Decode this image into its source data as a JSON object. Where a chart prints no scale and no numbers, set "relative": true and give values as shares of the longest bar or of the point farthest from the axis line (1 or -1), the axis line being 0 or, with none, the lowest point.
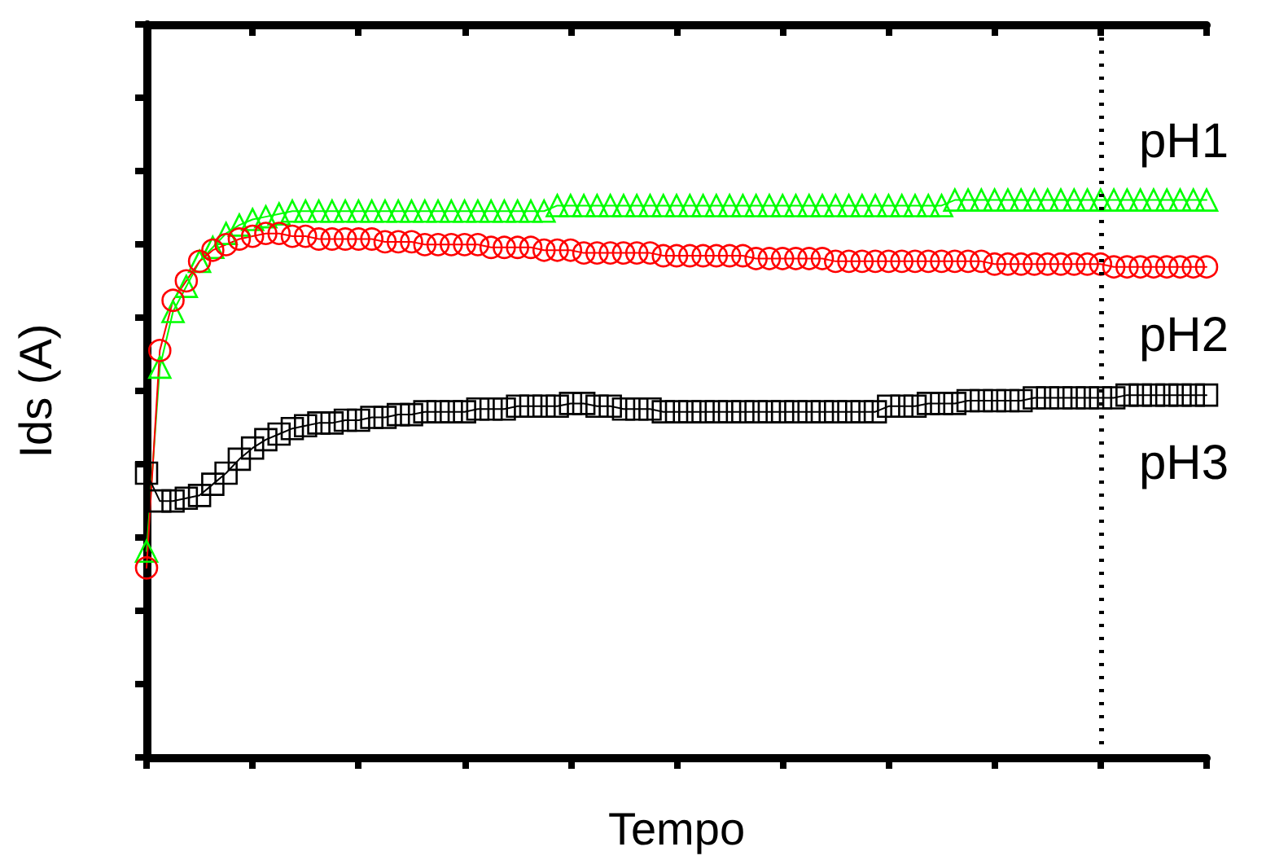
{
  "chart_data": {
    "type": "line",
    "relative": true,
    "xlabel": "Tempo",
    "ylabel": "Ids (A)",
    "categories": [
      null,
      null,
      null,
      null,
      null,
      null,
      null,
      null,
      null,
      null,
      null,
      null,
      null,
      null,
      null,
      null,
      null,
      null,
      null,
      null,
      null,
      null,
      null,
      null,
      null,
      null,
      null,
      null,
      null,
      null,
      null,
      null,
      null,
      null,
      null,
      null,
      null,
      null,
      null,
      null,
      null,
      null,
      null,
      null,
      null,
      null,
      null,
      null,
      null,
      null,
      null,
      null,
      null,
      null,
      null,
      null,
      null,
      null,
      null,
      null,
      null,
      null,
      null,
      null,
      null,
      null,
      null,
      null,
      null,
      null,
      null,
      null,
      null,
      null,
      null,
      null,
      null,
      null,
      null,
      null,
      null
    ],
    "series": [
      {
        "name": "pH1",
        "color": "#00ff00",
        "marker": "triangle",
        "values": [
          0.37,
          0.7,
          0.8,
          0.845,
          0.89,
          0.915,
          0.94,
          0.955,
          0.965,
          0.97,
          0.975,
          0.98,
          0.98,
          0.98,
          0.98,
          0.98,
          0.98,
          0.98,
          0.98,
          0.98,
          0.98,
          0.98,
          0.98,
          0.98,
          0.98,
          0.98,
          0.98,
          0.98,
          0.98,
          0.98,
          0.98,
          0.99,
          0.99,
          0.99,
          0.99,
          0.99,
          0.99,
          0.99,
          0.99,
          0.99,
          0.99,
          0.99,
          0.99,
          0.99,
          0.99,
          0.99,
          0.99,
          0.99,
          0.99,
          0.99,
          0.99,
          0.99,
          0.99,
          0.99,
          0.99,
          0.99,
          0.99,
          0.99,
          0.99,
          0.99,
          0.99,
          1.0,
          1.0,
          1.0,
          1.0,
          1.0,
          1.0,
          1.0,
          1.0,
          1.0,
          1.0,
          1.0,
          1.0,
          1.0,
          1.0,
          1.0,
          1.0,
          1.0,
          1.0,
          1.0,
          1.0
        ]
      },
      {
        "name": "pH2",
        "color": "#ff0000",
        "marker": "circle",
        "values": [
          0.34,
          0.73,
          0.82,
          0.855,
          0.89,
          0.91,
          0.92,
          0.93,
          0.935,
          0.94,
          0.94,
          0.935,
          0.935,
          0.93,
          0.93,
          0.93,
          0.93,
          0.93,
          0.925,
          0.925,
          0.925,
          0.92,
          0.92,
          0.92,
          0.92,
          0.92,
          0.915,
          0.915,
          0.915,
          0.915,
          0.91,
          0.91,
          0.91,
          0.905,
          0.905,
          0.905,
          0.905,
          0.905,
          0.905,
          0.9,
          0.9,
          0.9,
          0.9,
          0.9,
          0.9,
          0.9,
          0.895,
          0.895,
          0.895,
          0.895,
          0.895,
          0.895,
          0.89,
          0.89,
          0.89,
          0.89,
          0.89,
          0.89,
          0.89,
          0.89,
          0.89,
          0.89,
          0.89,
          0.89,
          0.885,
          0.885,
          0.885,
          0.885,
          0.885,
          0.885,
          0.885,
          0.885,
          0.885,
          0.88,
          0.88,
          0.88,
          0.88,
          0.88,
          0.88,
          0.88,
          0.88
        ]
      },
      {
        "name": "pH3",
        "color": "#000000",
        "marker": "square",
        "values": [
          0.51,
          0.46,
          0.46,
          0.465,
          0.47,
          0.49,
          0.51,
          0.535,
          0.555,
          0.57,
          0.58,
          0.59,
          0.595,
          0.6,
          0.6,
          0.605,
          0.605,
          0.61,
          0.61,
          0.615,
          0.615,
          0.62,
          0.62,
          0.62,
          0.62,
          0.625,
          0.625,
          0.625,
          0.63,
          0.63,
          0.63,
          0.63,
          0.635,
          0.635,
          0.63,
          0.63,
          0.625,
          0.625,
          0.625,
          0.62,
          0.62,
          0.62,
          0.62,
          0.62,
          0.62,
          0.62,
          0.62,
          0.62,
          0.62,
          0.62,
          0.62,
          0.62,
          0.62,
          0.62,
          0.62,
          0.62,
          0.63,
          0.63,
          0.63,
          0.635,
          0.635,
          0.635,
          0.64,
          0.64,
          0.64,
          0.64,
          0.64,
          0.645,
          0.645,
          0.645,
          0.645,
          0.645,
          0.645,
          0.645,
          0.65,
          0.65,
          0.65,
          0.65,
          0.65,
          0.65,
          0.65
        ]
      }
    ]
  }
}
